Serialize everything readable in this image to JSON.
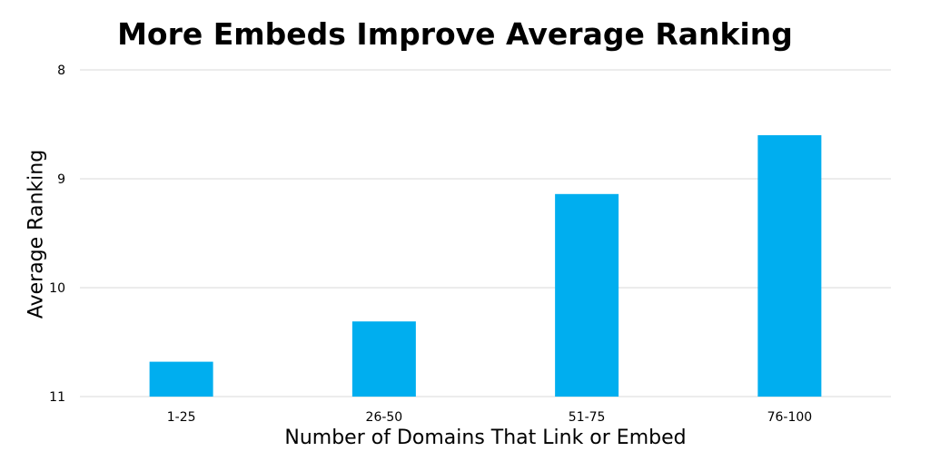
{
  "chart_data": {
    "type": "bar",
    "title": "More Embeds Improve Average Ranking",
    "xlabel": "Number of Domains That Link or Embed",
    "ylabel": "Average Ranking",
    "categories": [
      "1-25",
      "26-50",
      "51-75",
      "76-100"
    ],
    "values": [
      10.68,
      10.31,
      9.14,
      8.6
    ],
    "ylim": [
      8,
      11
    ],
    "y_axis_inverted": true,
    "yticks": [
      "8",
      "9",
      "10",
      "11"
    ],
    "grid": true,
    "legend": "none",
    "bar_color": "#00AEEF",
    "grid_color": "#D9D9D9"
  }
}
